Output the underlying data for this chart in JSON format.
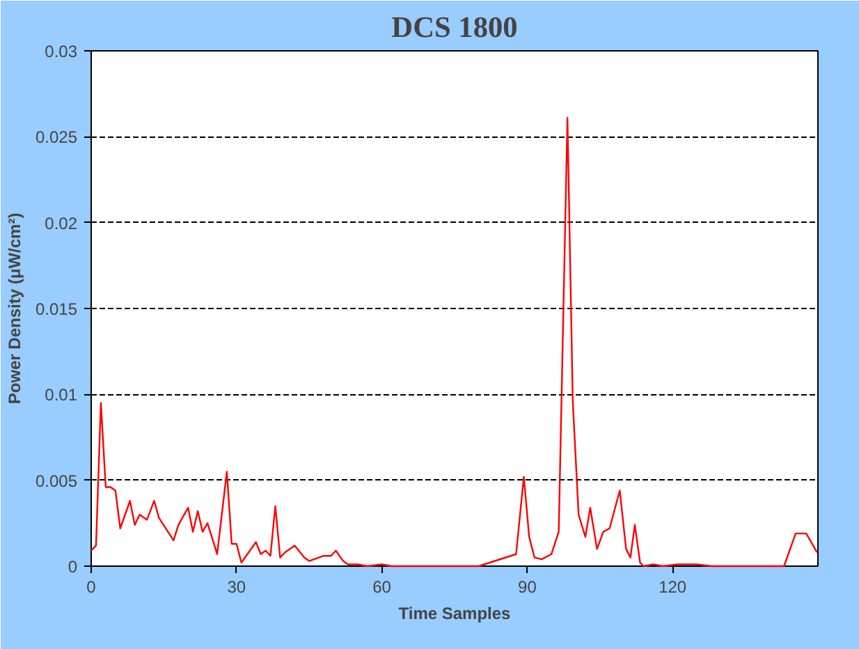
{
  "chart_data": {
    "type": "line",
    "title": "DCS 1800",
    "xlabel": "Time Samples",
    "ylabel": "Power Density (μW/cm²)",
    "x": [
      0,
      1,
      2,
      3,
      4,
      5,
      6,
      8,
      9,
      10,
      11.5,
      13,
      14,
      17,
      18,
      20,
      21,
      22,
      23,
      24,
      26,
      28,
      29,
      30,
      31,
      34,
      35,
      36,
      37,
      38,
      39,
      40,
      42,
      44,
      45,
      48,
      49.5,
      50.5,
      52,
      53,
      55,
      57,
      60,
      62,
      65,
      70,
      80,
      87.7,
      89.3,
      90.4,
      91.5,
      93,
      95,
      96.5,
      98.3,
      99.4,
      100.6,
      102,
      103,
      104.4,
      105.7,
      107,
      109.1,
      110.4,
      111.3,
      112.2,
      113.3,
      114,
      116,
      118,
      121,
      125,
      128,
      139,
      143,
      145.4,
      147.6,
      149.8
    ],
    "series": [
      {
        "color": "#ff0000",
        "values": [
          0.0009,
          0.0012,
          0.0095,
          0.0046,
          0.0046,
          0.0044,
          0.0022,
          0.0038,
          0.0024,
          0.003,
          0.0027,
          0.0038,
          0.0028,
          0.0015,
          0.0024,
          0.0034,
          0.002,
          0.0032,
          0.002,
          0.0025,
          0.0007,
          0.0055,
          0.0013,
          0.0013,
          0.0002,
          0.0014,
          0.0007,
          0.0009,
          0.0006,
          0.0035,
          0.0005,
          0.0008,
          0.0012,
          0.0005,
          0.0003,
          0.0006,
          0.0006,
          0.0009,
          0.0003,
          0.0001,
          0.0001,
          0,
          0.0001,
          0,
          0,
          0,
          0,
          0.0007,
          0.0052,
          0.0017,
          0.0005,
          0.0004,
          0.0007,
          0.002,
          0.0261,
          0.0096,
          0.003,
          0.0017,
          0.0034,
          0.001,
          0.002,
          0.0022,
          0.0044,
          0.001,
          0.0005,
          0.0024,
          0.0002,
          0,
          0.0001,
          0,
          0.0001,
          0.0001,
          0,
          0,
          0,
          0.0019,
          0.0019,
          0.0008
        ]
      }
    ],
    "xlim": [
      0,
      150
    ],
    "xticks": [
      0,
      30,
      60,
      90,
      120
    ],
    "ylim": [
      0,
      0.03
    ],
    "yticks": [
      0,
      0.005,
      0.01,
      0.015,
      0.02,
      0.025,
      0.03
    ],
    "grid": "y",
    "line_style": "solid",
    "marker": "none"
  }
}
